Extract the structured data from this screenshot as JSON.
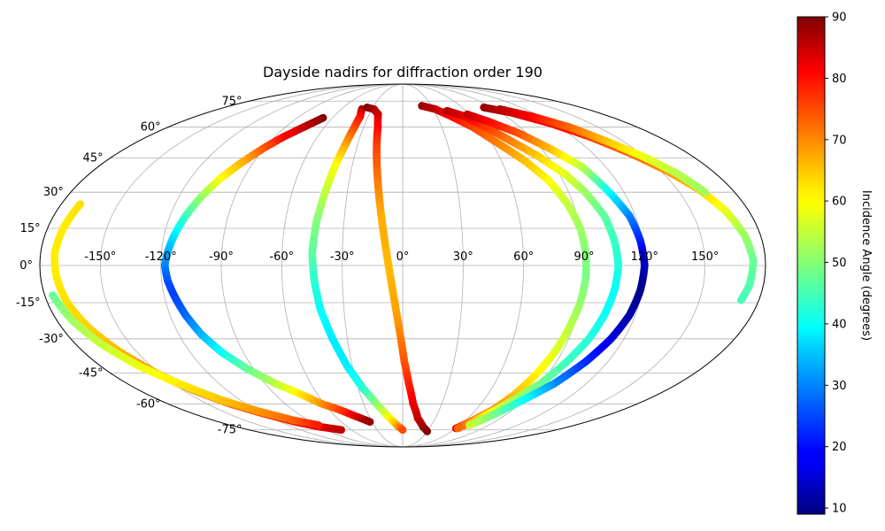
{
  "chart_data": {
    "type": "scatter",
    "projection": "mollweide",
    "title": "Dayside nadirs for diffraction order 190",
    "grid": true,
    "lon_ticks": [
      -150,
      -120,
      -90,
      -60,
      -30,
      0,
      30,
      60,
      90,
      120,
      150
    ],
    "lon_tick_labels": [
      "-150°",
      "-120°",
      "-90°",
      "-60°",
      "-30°",
      "0°",
      "30°",
      "60°",
      "90°",
      "120°",
      "150°"
    ],
    "lat_ticks": [
      75,
      60,
      45,
      30,
      15,
      0,
      -15,
      -30,
      -45,
      -60,
      -75
    ],
    "lat_tick_labels": [
      "75°",
      "60°",
      "45°",
      "30°",
      "15°",
      "0°",
      "-15°",
      "-30°",
      "-45°",
      "-60°",
      "-75°"
    ],
    "colorbar": {
      "label": "Incidence Angle (degrees)",
      "colormap": "jet",
      "vmin": 9,
      "vmax": 90,
      "ticks": [
        10,
        20,
        30,
        40,
        50,
        60,
        70,
        80,
        90
      ],
      "tick_labels": [
        "10",
        "20",
        "30",
        "40",
        "50",
        "60",
        "70",
        "80",
        "90"
      ]
    },
    "series": [
      {
        "points": [
          [
            -68,
            65,
            90
          ],
          [
            -76,
            60,
            85
          ],
          [
            -84,
            55,
            80
          ],
          [
            -90,
            50,
            74
          ],
          [
            -97,
            43,
            66
          ],
          [
            -103,
            36,
            60
          ],
          [
            -108,
            28,
            52
          ],
          [
            -112,
            20,
            45
          ],
          [
            -115,
            12,
            38
          ],
          [
            -117,
            5,
            33
          ],
          [
            -118,
            0,
            30
          ],
          [
            -117,
            -6,
            26
          ],
          [
            -115,
            -12,
            24
          ],
          [
            -112,
            -20,
            27
          ],
          [
            -108,
            -28,
            33
          ],
          [
            -102,
            -36,
            40
          ],
          [
            -94,
            -43,
            47
          ],
          [
            -83,
            -50,
            54
          ],
          [
            -72,
            -55,
            61
          ],
          [
            -62,
            -60,
            68
          ],
          [
            -52,
            -63,
            74
          ],
          [
            -44,
            -66,
            80
          ],
          [
            -38,
            -68,
            85
          ],
          [
            -32,
            -70,
            88
          ]
        ]
      },
      {
        "points": [
          [
            -40,
            70,
            88
          ],
          [
            -37,
            66,
            80
          ],
          [
            -37,
            60,
            75
          ],
          [
            -38,
            52,
            68
          ],
          [
            -40,
            42,
            60
          ],
          [
            -42,
            30,
            55
          ],
          [
            -44,
            18,
            50
          ],
          [
            -45,
            5,
            47
          ],
          [
            -44,
            -6,
            43
          ],
          [
            -42,
            -18,
            40
          ],
          [
            -38,
            -30,
            38
          ],
          [
            -33,
            -42,
            38
          ],
          [
            -27,
            -52,
            42
          ],
          [
            -20,
            -60,
            50
          ],
          [
            -13,
            -67,
            58
          ],
          [
            -6,
            -72,
            66
          ],
          [
            0,
            -75,
            74
          ]
        ]
      },
      {
        "points": [
          [
            -36,
            71,
            90
          ],
          [
            -28,
            70,
            87
          ],
          [
            -22,
            67,
            84
          ],
          [
            -19,
            60,
            80
          ],
          [
            -17,
            50,
            75
          ],
          [
            -15,
            40,
            72
          ],
          [
            -13,
            30,
            69
          ],
          [
            -11,
            20,
            66
          ],
          [
            -9,
            10,
            66
          ],
          [
            -7,
            0,
            65
          ],
          [
            -5,
            -10,
            66
          ],
          [
            -3,
            -20,
            67
          ],
          [
            -1,
            -30,
            70
          ],
          [
            1,
            -40,
            73
          ],
          [
            4,
            -50,
            77
          ],
          [
            8,
            -60,
            81
          ],
          [
            14,
            -68,
            84
          ],
          [
            22,
            -73,
            87
          ],
          [
            30,
            -76,
            90
          ]
        ]
      },
      {
        "points": [
          [
            -170,
            25,
            62
          ],
          [
            -172,
            15,
            61
          ],
          [
            -173,
            5,
            61
          ],
          [
            -172,
            -5,
            61
          ],
          [
            -170,
            -15,
            62
          ],
          [
            -166,
            -25,
            63
          ],
          [
            -160,
            -35,
            65
          ],
          [
            -152,
            -45,
            68
          ],
          [
            -143,
            -53,
            70
          ],
          [
            -132,
            -60,
            73
          ],
          [
            -120,
            -65,
            76
          ],
          [
            -105,
            -70,
            80
          ],
          [
            -90,
            -73,
            82
          ],
          [
            -72,
            -75,
            85
          ]
        ]
      },
      {
        "points": [
          [
            -176,
            -12,
            47
          ],
          [
            -172,
            -22,
            52
          ],
          [
            -166,
            -32,
            55
          ],
          [
            -157,
            -42,
            58
          ],
          [
            -146,
            -50,
            61
          ],
          [
            -134,
            -58,
            64
          ],
          [
            -120,
            -64,
            68
          ],
          [
            -104,
            -69,
            72
          ],
          [
            -88,
            -72,
            78
          ]
        ]
      },
      {
        "points": [
          [
            20,
            72,
            88
          ],
          [
            32,
            70,
            85
          ],
          [
            42,
            66,
            80
          ],
          [
            54,
            60,
            75
          ],
          [
            64,
            52,
            70
          ],
          [
            74,
            44,
            65
          ],
          [
            82,
            35,
            60
          ],
          [
            87,
            25,
            55
          ],
          [
            90,
            15,
            52
          ],
          [
            91,
            5,
            50
          ],
          [
            91,
            -5,
            49
          ],
          [
            90,
            -15,
            51
          ],
          [
            88,
            -25,
            54
          ],
          [
            86,
            -35,
            57
          ],
          [
            83,
            -45,
            60
          ],
          [
            79,
            -55,
            64
          ],
          [
            74,
            -63,
            68
          ],
          [
            66,
            -70,
            73
          ],
          [
            60,
            -74,
            80
          ]
        ]
      },
      {
        "points": [
          [
            42,
            69,
            86
          ],
          [
            54,
            66,
            82
          ],
          [
            64,
            60,
            76
          ],
          [
            74,
            53,
            70
          ],
          [
            84,
            46,
            64
          ],
          [
            93,
            38,
            58
          ],
          [
            99,
            30,
            52
          ],
          [
            104,
            20,
            47
          ],
          [
            106,
            10,
            44
          ],
          [
            107,
            0,
            42
          ],
          [
            106,
            -10,
            40
          ],
          [
            104,
            -20,
            40
          ],
          [
            101,
            -30,
            42
          ],
          [
            96,
            -40,
            44
          ],
          [
            90,
            -50,
            48
          ],
          [
            82,
            -58,
            52
          ],
          [
            74,
            -65,
            58
          ],
          [
            68,
            -70,
            65
          ],
          [
            62,
            -74,
            72
          ]
        ]
      },
      {
        "points": [
          [
            58,
            67,
            85
          ],
          [
            70,
            63,
            80
          ],
          [
            84,
            57,
            74
          ],
          [
            96,
            49,
            65
          ],
          [
            106,
            41,
            55
          ],
          [
            112,
            30,
            40
          ],
          [
            117,
            20,
            30
          ],
          [
            119,
            10,
            22
          ],
          [
            120,
            0,
            14
          ],
          [
            119,
            -10,
            10
          ],
          [
            117,
            -20,
            12
          ],
          [
            113,
            -30,
            16
          ],
          [
            107,
            -40,
            22
          ],
          [
            99,
            -50,
            30
          ],
          [
            89,
            -58,
            40
          ],
          [
            79,
            -66,
            48
          ],
          [
            70,
            -72,
            55
          ]
        ]
      },
      {
        "points": [
          [
            82,
            71,
            88
          ],
          [
            100,
            68,
            84
          ],
          [
            118,
            62,
            80
          ],
          [
            132,
            55,
            76
          ],
          [
            144,
            47,
            72
          ],
          [
            154,
            39,
            68
          ],
          [
            162,
            31,
            64
          ],
          [
            168,
            22,
            58
          ],
          [
            172,
            12,
            52
          ],
          [
            174,
            2,
            48
          ],
          [
            173,
            -8,
            46
          ],
          [
            171,
            -14,
            45
          ]
        ]
      },
      {
        "points": [
          [
            95,
            70,
            86
          ],
          [
            112,
            66,
            80
          ],
          [
            128,
            60,
            72
          ],
          [
            140,
            52,
            64
          ],
          [
            150,
            45,
            58
          ],
          [
            158,
            38,
            54
          ],
          [
            164,
            30,
            52
          ]
        ]
      }
    ]
  }
}
